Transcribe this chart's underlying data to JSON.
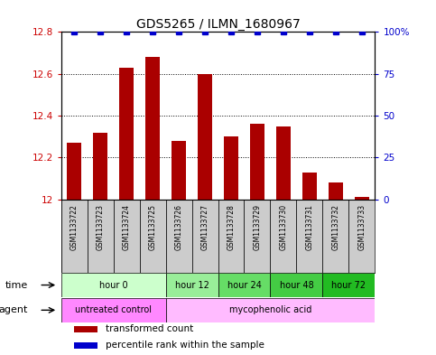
{
  "title": "GDS5265 / ILMN_1680967",
  "samples": [
    "GSM1133722",
    "GSM1133723",
    "GSM1133724",
    "GSM1133725",
    "GSM1133726",
    "GSM1133727",
    "GSM1133728",
    "GSM1133729",
    "GSM1133730",
    "GSM1133731",
    "GSM1133732",
    "GSM1133733"
  ],
  "bar_values": [
    12.27,
    12.32,
    12.63,
    12.68,
    12.28,
    12.6,
    12.3,
    12.36,
    12.35,
    12.13,
    12.08,
    12.01
  ],
  "percentile_values": [
    100,
    100,
    100,
    100,
    100,
    100,
    100,
    100,
    100,
    100,
    100,
    100
  ],
  "bar_color": "#aa0000",
  "percentile_color": "#0000cc",
  "ylim": [
    12.0,
    12.8
  ],
  "yticks": [
    12.0,
    12.2,
    12.4,
    12.6,
    12.8
  ],
  "right_yticks": [
    0,
    25,
    50,
    75,
    100
  ],
  "right_ylim": [
    0,
    100
  ],
  "time_groups": [
    {
      "label": "hour 0",
      "start": 0,
      "end": 4,
      "color": "#ccffcc"
    },
    {
      "label": "hour 12",
      "start": 4,
      "end": 6,
      "color": "#99ee99"
    },
    {
      "label": "hour 24",
      "start": 6,
      "end": 8,
      "color": "#66dd66"
    },
    {
      "label": "hour 48",
      "start": 8,
      "end": 10,
      "color": "#44cc44"
    },
    {
      "label": "hour 72",
      "start": 10,
      "end": 12,
      "color": "#22bb22"
    }
  ],
  "agent_groups": [
    {
      "label": "untreated control",
      "start": 0,
      "end": 4,
      "color": "#ff88ff"
    },
    {
      "label": "mycophenolic acid",
      "start": 4,
      "end": 12,
      "color": "#ffbbff"
    }
  ],
  "bar_width": 0.55,
  "background_color": "#ffffff",
  "sample_cell_color": "#cccccc",
  "title_fontsize": 10,
  "axis_label_color_left": "#cc0000",
  "axis_label_color_right": "#0000cc",
  "legend_items": [
    {
      "label": "transformed count",
      "color": "#aa0000"
    },
    {
      "label": "percentile rank within the sample",
      "color": "#0000cc"
    }
  ]
}
